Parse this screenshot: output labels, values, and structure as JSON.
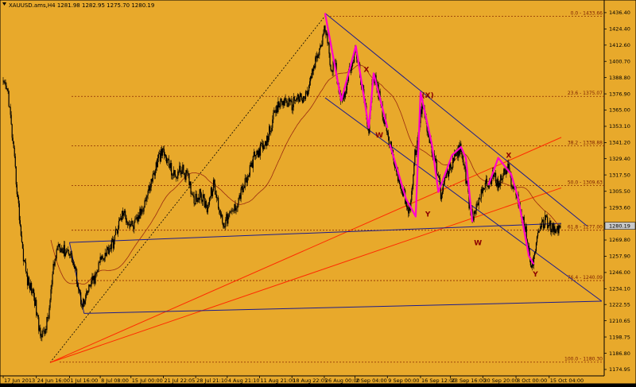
{
  "window_title": "XAUUSD.ams,H4 1281.98 1282.95 1275.70 1280.19",
  "colors": {
    "background": "#E8A92B",
    "candles": "#000000",
    "channel": "#1C1C8C",
    "trend_red": "#FF2A00",
    "fib_dotted": "#8B2A00",
    "moving_average": "#9A2A10",
    "wave": "#FF00CC",
    "label": "#8B0000",
    "last_price_box": "#C8C8C8"
  },
  "chart_data": {
    "type": "candlestick",
    "symbol": "XAUUSD.ams",
    "timeframe": "H4",
    "ohlc": {
      "open": 1281.98,
      "high": 1282.95,
      "low": 1275.7,
      "close": 1280.19
    },
    "y_ticks": [
      1436.4,
      1424.4,
      1412.6,
      1400.7,
      1388.8,
      1376.9,
      1365.0,
      1353.1,
      1341.2,
      1329.4,
      1317.5,
      1305.5,
      1293.6,
      1281.7,
      1269.8,
      1257.9,
      1246.0,
      1234.1,
      1222.55,
      1210.65,
      1198.75,
      1186.8,
      1174.95
    ],
    "y_tick_labels": [
      "1436.40",
      "1424.40",
      "1412.60",
      "1400.70",
      "1388.80",
      "1376.90",
      "1365.00",
      "1353.10",
      "1341.20",
      "1329.40",
      "1317.50",
      "1305.50",
      "1293.60",
      "1281.70",
      "1269.80",
      "1257.90",
      "1246.00",
      "1234.10",
      "1222.55",
      "1210.65",
      "1198.75",
      "1186.80",
      "1174.95"
    ],
    "ylim": [
      1172.0,
      1441.0
    ],
    "x_ticks": [
      {
        "label": "17 Jun 2013",
        "i": 0
      },
      {
        "label": "24 Jun 16:00",
        "i": 41
      },
      {
        "label": "1 Jul 16:00",
        "i": 82
      },
      {
        "label": "8 Jul 08:00",
        "i": 120
      },
      {
        "label": "15 Jul 00:00",
        "i": 158
      },
      {
        "label": "21 Jul 22:05",
        "i": 198
      },
      {
        "label": "28 Jul 21:10",
        "i": 238
      },
      {
        "label": "4 Aug 21:10",
        "i": 277
      },
      {
        "label": "11 Aug 21:00",
        "i": 317
      },
      {
        "label": "18 Aug 22:05",
        "i": 357
      },
      {
        "label": "26 Aug 00:00",
        "i": 397
      },
      {
        "label": "2 Sep 04:00",
        "i": 435
      },
      {
        "label": "9 Sep 00:00",
        "i": 475
      },
      {
        "label": "16 Sep 12:00",
        "i": 516
      },
      {
        "label": "23 Sep 16:00",
        "i": 553
      },
      {
        "label": "30 Sep 20:00",
        "i": 593
      },
      {
        "label": "8 Oct 00:00",
        "i": 634
      },
      {
        "label": "15 Oct 04:00",
        "i": 675
      }
    ],
    "n_bars": 690,
    "price_path": [
      [
        0,
        1383
      ],
      [
        6,
        1378
      ],
      [
        12,
        1340
      ],
      [
        18,
        1300
      ],
      [
        24,
        1262
      ],
      [
        30,
        1240
      ],
      [
        38,
        1230
      ],
      [
        44,
        1205
      ],
      [
        50,
        1200
      ],
      [
        56,
        1214
      ],
      [
        62,
        1248
      ],
      [
        68,
        1268
      ],
      [
        74,
        1262
      ],
      [
        82,
        1262
      ],
      [
        90,
        1245
      ],
      [
        96,
        1226
      ],
      [
        100,
        1223
      ],
      [
        108,
        1238
      ],
      [
        114,
        1242
      ],
      [
        120,
        1255
      ],
      [
        128,
        1262
      ],
      [
        136,
        1268
      ],
      [
        142,
        1280
      ],
      [
        148,
        1290
      ],
      [
        156,
        1282
      ],
      [
        162,
        1280
      ],
      [
        170,
        1290
      ],
      [
        178,
        1303
      ],
      [
        186,
        1318
      ],
      [
        192,
        1330
      ],
      [
        198,
        1334
      ],
      [
        204,
        1326
      ],
      [
        212,
        1316
      ],
      [
        220,
        1322
      ],
      [
        228,
        1316
      ],
      [
        236,
        1300
      ],
      [
        244,
        1303
      ],
      [
        252,
        1294
      ],
      [
        260,
        1310
      ],
      [
        266,
        1296
      ],
      [
        272,
        1282
      ],
      [
        278,
        1286
      ],
      [
        286,
        1293
      ],
      [
        294,
        1305
      ],
      [
        302,
        1315
      ],
      [
        310,
        1330
      ],
      [
        318,
        1337
      ],
      [
        324,
        1338
      ],
      [
        330,
        1352
      ],
      [
        336,
        1362
      ],
      [
        342,
        1370
      ],
      [
        350,
        1372
      ],
      [
        356,
        1368
      ],
      [
        362,
        1375
      ],
      [
        370,
        1372
      ],
      [
        376,
        1378
      ],
      [
        382,
        1392
      ],
      [
        388,
        1404
      ],
      [
        394,
        1415
      ],
      [
        398,
        1426
      ],
      [
        402,
        1410
      ],
      [
        406,
        1395
      ],
      [
        410,
        1400
      ],
      [
        414,
        1385
      ],
      [
        418,
        1372
      ],
      [
        424,
        1382
      ],
      [
        430,
        1398
      ],
      [
        436,
        1408
      ],
      [
        440,
        1395
      ],
      [
        444,
        1380
      ],
      [
        448,
        1365
      ],
      [
        452,
        1352
      ],
      [
        456,
        1385
      ],
      [
        460,
        1388
      ],
      [
        466,
        1372
      ],
      [
        472,
        1355
      ],
      [
        478,
        1340
      ],
      [
        484,
        1326
      ],
      [
        490,
        1310
      ],
      [
        496,
        1302
      ],
      [
        500,
        1290
      ],
      [
        504,
        1295
      ],
      [
        508,
        1330
      ],
      [
        512,
        1340
      ],
      [
        516,
        1362
      ],
      [
        520,
        1370
      ],
      [
        526,
        1345
      ],
      [
        532,
        1330
      ],
      [
        538,
        1317
      ],
      [
        542,
        1300
      ],
      [
        546,
        1315
      ],
      [
        552,
        1322
      ],
      [
        558,
        1330
      ],
      [
        566,
        1338
      ],
      [
        572,
        1314
      ],
      [
        576,
        1296
      ],
      [
        580,
        1286
      ],
      [
        586,
        1296
      ],
      [
        592,
        1308
      ],
      [
        600,
        1312
      ],
      [
        606,
        1318
      ],
      [
        612,
        1310
      ],
      [
        618,
        1318
      ],
      [
        624,
        1322
      ],
      [
        630,
        1310
      ],
      [
        636,
        1302
      ],
      [
        640,
        1290
      ],
      [
        646,
        1276
      ],
      [
        650,
        1258
      ],
      [
        654,
        1252
      ],
      [
        658,
        1264
      ],
      [
        664,
        1278
      ],
      [
        670,
        1285
      ],
      [
        676,
        1280
      ],
      [
        682,
        1276
      ],
      [
        690,
        1280
      ]
    ],
    "fib_levels": [
      {
        "label": "0.0 - 1433.66",
        "price": 1433.66
      },
      {
        "label": "23.6 - 1375.07",
        "price": 1375.07
      },
      {
        "label": "38.2 - 1338.88",
        "price": 1338.88
      },
      {
        "label": "50.0 - 1309.63",
        "price": 1309.63
      },
      {
        "label": "61.8 - 1277.00",
        "price": 1277.0
      },
      {
        "label": "76.4 - 1240.09",
        "price": 1240.09
      },
      {
        "label": "100.0 - 1180.30",
        "price": 1180.3
      }
    ],
    "wave_labels": [
      {
        "text": "X",
        "i": 449,
        "price": 1393
      },
      {
        "text": "W",
        "i": 465,
        "price": 1345
      },
      {
        "text": "(X)",
        "i": 525,
        "price": 1374
      },
      {
        "text": "Y",
        "i": 525,
        "price": 1287
      },
      {
        "text": "X",
        "i": 625,
        "price": 1330
      },
      {
        "text": "W",
        "i": 587,
        "price": 1266
      },
      {
        "text": "Y",
        "i": 658,
        "price": 1243
      }
    ],
    "last_price_label": "1280.19"
  }
}
